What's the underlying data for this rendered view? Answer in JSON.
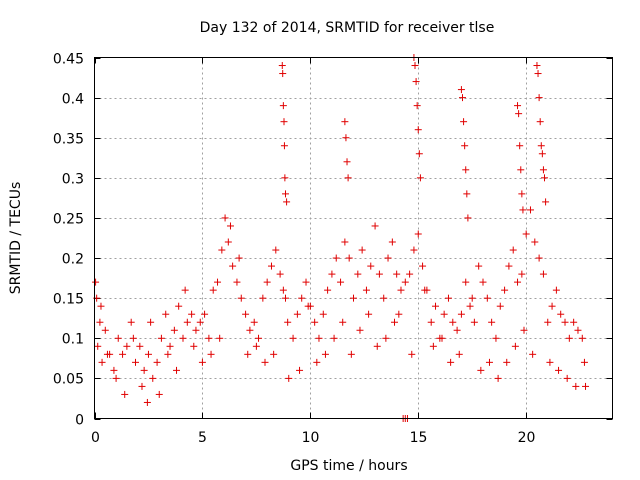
{
  "chart_data": {
    "type": "scatter",
    "title": "Day 132 of 2014, SRMTID for receiver tlse",
    "xlabel": "GPS time / hours",
    "ylabel": "SRMTID / TECUs",
    "xlim": [
      0,
      24
    ],
    "ylim": [
      0,
      0.45
    ],
    "xticks": [
      0,
      5,
      10,
      15,
      20
    ],
    "xtick_labels": [
      "0",
      "5",
      "10",
      "15",
      "20"
    ],
    "yticks": [
      0,
      0.05,
      0.1,
      0.15,
      0.2,
      0.25,
      0.3,
      0.35,
      0.4,
      0.45
    ],
    "ytick_labels": [
      "0",
      "0.05",
      "0.1",
      "0.15",
      "0.2",
      "0.25",
      "0.3",
      "0.35",
      "0.4",
      "0.45"
    ],
    "grid": true,
    "marker": "+",
    "color": "#e00000",
    "series": [
      {
        "name": "SRMTID",
        "x": [
          0.05,
          0.15,
          0.25,
          0.35,
          0.5,
          0.7,
          0.9,
          1.1,
          1.3,
          1.5,
          1.7,
          1.9,
          2.1,
          2.3,
          2.5,
          2.7,
          2.9,
          3.1,
          3.3,
          3.5,
          3.7,
          3.9,
          4.1,
          4.3,
          4.5,
          4.7,
          4.9,
          5.1,
          5.3,
          5.5,
          5.7,
          5.9,
          6.05,
          6.2,
          6.4,
          6.6,
          6.8,
          7.0,
          7.2,
          7.4,
          7.6,
          7.8,
          8.0,
          8.2,
          8.4,
          8.6,
          8.75,
          8.85,
          8.95,
          9.2,
          9.4,
          9.6,
          9.8,
          10.0,
          10.2,
          10.4,
          10.6,
          10.8,
          11.0,
          11.2,
          11.4,
          11.6,
          11.8,
          12.0,
          12.2,
          12.4,
          12.6,
          12.8,
          13.0,
          13.2,
          13.4,
          13.6,
          13.8,
          14.0,
          14.2,
          14.4,
          14.6,
          14.8,
          15.0,
          15.2,
          15.4,
          15.6,
          15.8,
          16.0,
          16.2,
          16.4,
          16.6,
          16.8,
          17.0,
          17.2,
          17.4,
          17.6,
          17.8,
          18.0,
          18.2,
          18.4,
          18.6,
          18.8,
          19.0,
          19.2,
          19.4,
          19.6,
          19.8,
          20.0,
          20.2,
          20.4,
          20.6,
          20.8,
          21.0,
          21.2,
          21.4,
          21.6,
          21.8,
          22.0,
          22.2,
          22.4,
          22.6,
          8.7,
          8.72,
          8.75,
          8.78,
          8.8,
          8.82,
          8.85,
          8.9,
          11.6,
          11.65,
          11.7,
          11.75,
          14.8,
          14.85,
          14.9,
          14.95,
          15.0,
          15.05,
          15.1,
          17.0,
          17.05,
          17.1,
          17.15,
          17.2,
          17.25,
          17.3,
          19.6,
          19.65,
          19.7,
          19.75,
          19.8,
          19.85,
          20.5,
          20.55,
          20.6,
          20.65,
          20.7,
          20.75,
          20.8,
          20.85,
          20.9,
          14.3,
          14.4,
          14.5,
          0.1,
          0.3,
          0.6,
          1.0,
          1.4,
          1.8,
          2.2,
          2.45,
          2.6,
          3.0,
          3.4,
          3.8,
          4.2,
          4.6,
          5.0,
          5.4,
          5.8,
          6.3,
          6.7,
          7.1,
          7.5,
          7.9,
          8.3,
          9.0,
          9.5,
          9.9,
          10.3,
          10.7,
          11.1,
          11.5,
          11.9,
          12.3,
          12.7,
          13.1,
          13.5,
          13.9,
          14.1,
          14.7,
          15.3,
          15.7,
          16.1,
          16.5,
          16.9,
          17.5,
          17.9,
          18.3,
          18.7,
          19.1,
          19.5,
          19.9,
          20.3,
          21.1,
          21.5,
          21.9,
          22.3,
          22.7,
          22.75
        ],
        "y": [
          0.17,
          0.09,
          0.12,
          0.07,
          0.11,
          0.08,
          0.06,
          0.1,
          0.08,
          0.09,
          0.12,
          0.07,
          0.09,
          0.06,
          0.08,
          0.05,
          0.07,
          0.1,
          0.13,
          0.09,
          0.11,
          0.14,
          0.1,
          0.12,
          0.13,
          0.11,
          0.12,
          0.13,
          0.1,
          0.16,
          0.17,
          0.21,
          0.25,
          0.22,
          0.19,
          0.17,
          0.15,
          0.13,
          0.11,
          0.12,
          0.1,
          0.15,
          0.17,
          0.19,
          0.21,
          0.18,
          0.16,
          0.15,
          0.12,
          0.1,
          0.13,
          0.15,
          0.17,
          0.14,
          0.12,
          0.1,
          0.13,
          0.16,
          0.18,
          0.2,
          0.17,
          0.22,
          0.2,
          0.15,
          0.18,
          0.21,
          0.16,
          0.19,
          0.24,
          0.18,
          0.15,
          0.2,
          0.22,
          0.18,
          0.16,
          0.17,
          0.18,
          0.21,
          0.23,
          0.19,
          0.16,
          0.12,
          0.14,
          0.1,
          0.13,
          0.15,
          0.12,
          0.11,
          0.13,
          0.17,
          0.14,
          0.12,
          0.19,
          0.17,
          0.15,
          0.12,
          0.1,
          0.14,
          0.16,
          0.19,
          0.21,
          0.17,
          0.18,
          0.23,
          0.26,
          0.22,
          0.2,
          0.18,
          0.12,
          0.14,
          0.16,
          0.13,
          0.12,
          0.1,
          0.12,
          0.11,
          0.1,
          0.44,
          0.43,
          0.39,
          0.37,
          0.34,
          0.3,
          0.28,
          0.27,
          0.37,
          0.35,
          0.32,
          0.3,
          0.45,
          0.44,
          0.42,
          0.39,
          0.36,
          0.33,
          0.3,
          0.41,
          0.4,
          0.37,
          0.34,
          0.31,
          0.28,
          0.25,
          0.39,
          0.38,
          0.34,
          0.31,
          0.28,
          0.26,
          0.44,
          0.43,
          0.4,
          0.37,
          0.34,
          0.33,
          0.31,
          0.3,
          0.27,
          0.0,
          0.0,
          0.0,
          0.15,
          0.14,
          0.08,
          0.05,
          0.03,
          0.1,
          0.04,
          0.02,
          0.12,
          0.03,
          0.08,
          0.06,
          0.16,
          0.09,
          0.07,
          0.08,
          0.1,
          0.24,
          0.2,
          0.08,
          0.09,
          0.07,
          0.08,
          0.05,
          0.06,
          0.14,
          0.07,
          0.08,
          0.1,
          0.12,
          0.08,
          0.11,
          0.13,
          0.09,
          0.1,
          0.12,
          0.13,
          0.08,
          0.16,
          0.09,
          0.1,
          0.07,
          0.08,
          0.15,
          0.06,
          0.07,
          0.05,
          0.07,
          0.09,
          0.11,
          0.08,
          0.07,
          0.06,
          0.05,
          0.04,
          0.07,
          0.04
        ]
      }
    ]
  }
}
